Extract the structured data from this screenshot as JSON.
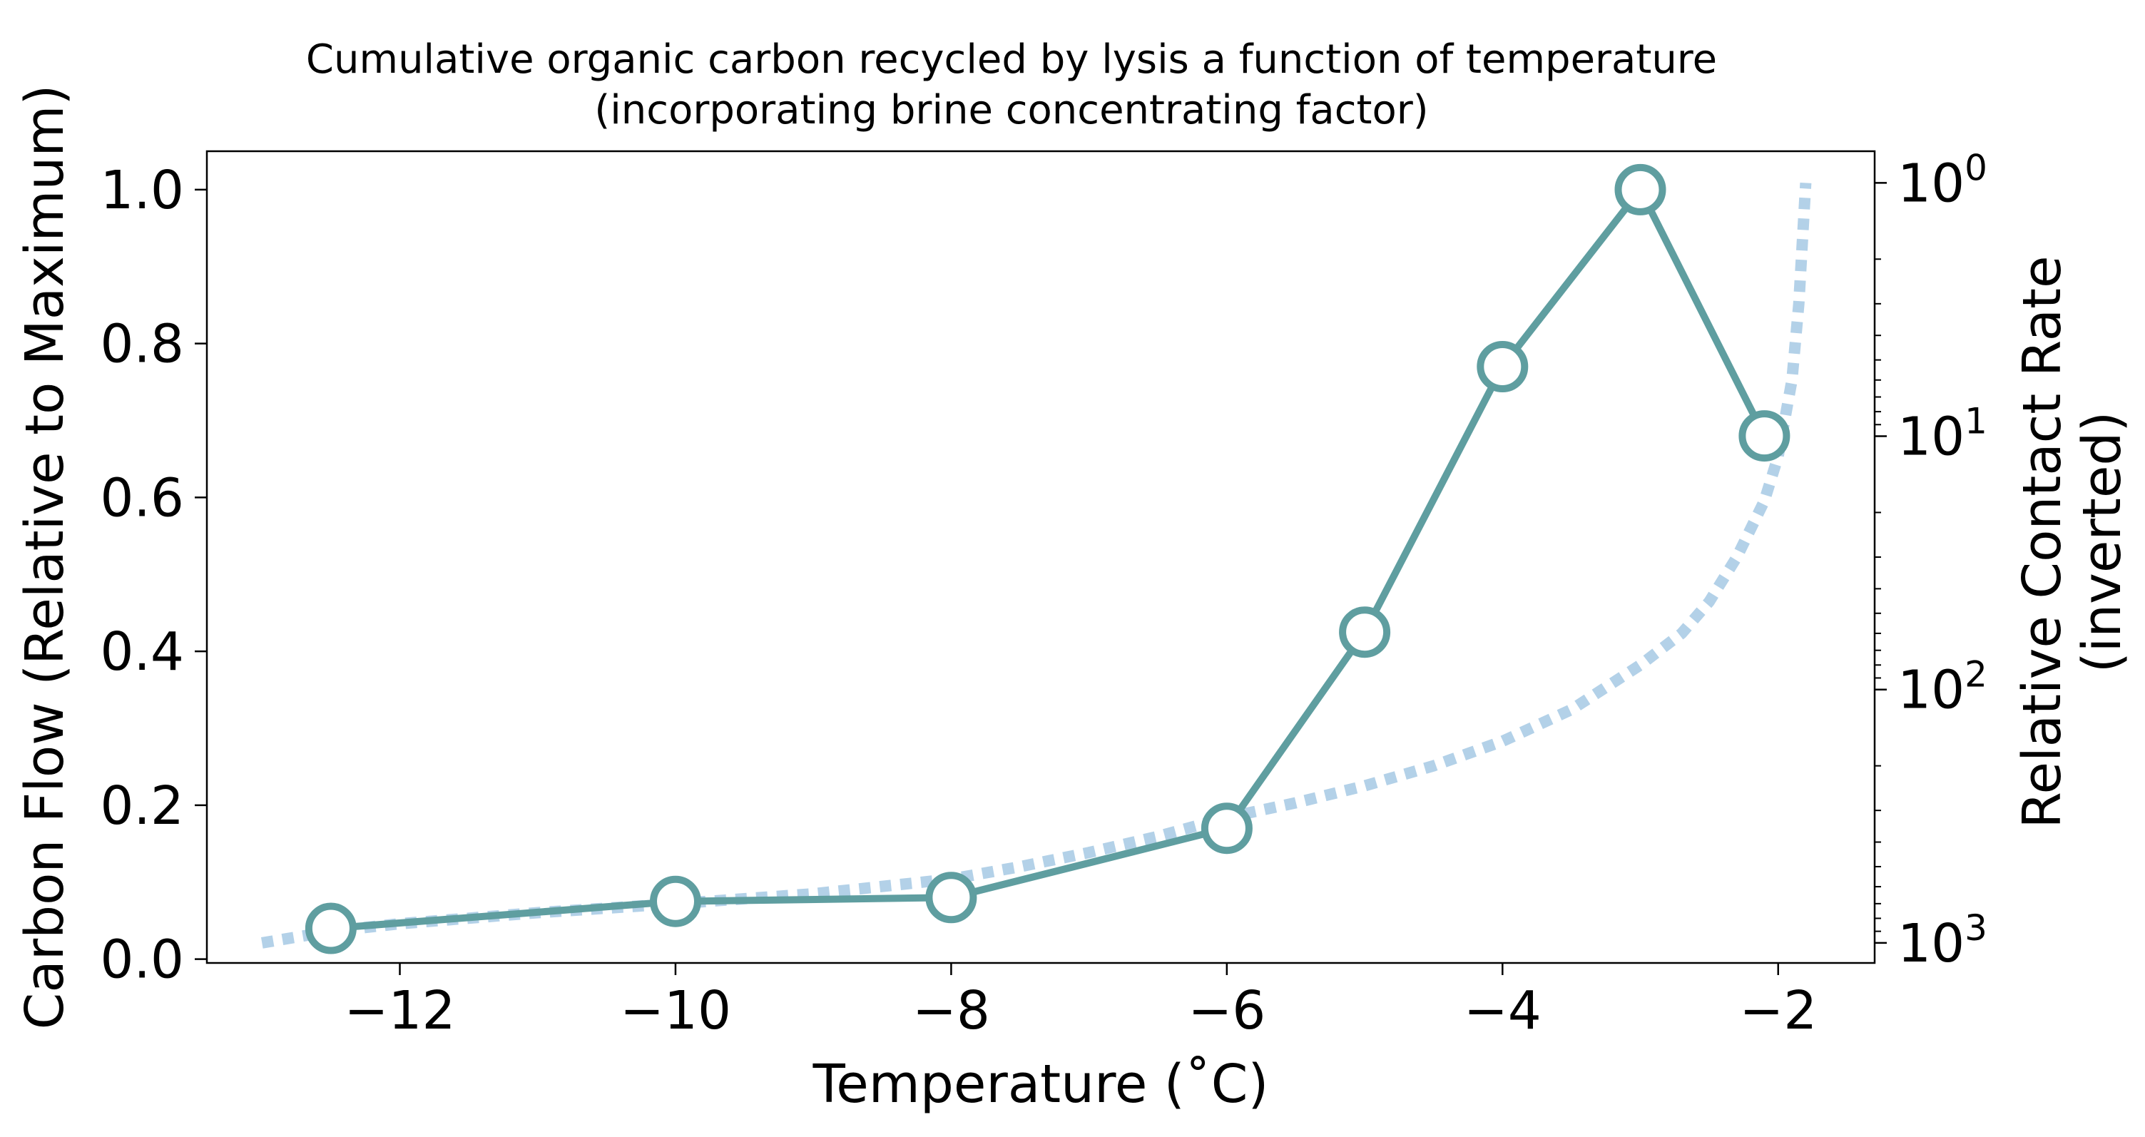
{
  "chart_data": {
    "type": "line",
    "title_line1": "Cumulative organic carbon recycled by lysis a function of temperature",
    "title_line2": "(incorporating brine concentrating factor)",
    "xlabel": "Temperature (˚C)",
    "ylabel": "Carbon Flow (Relative to Maximum)",
    "y2label_line1": "Relative Contact Rate",
    "y2label_line2": "(inverted)",
    "xlim": [
      -13.4,
      -1.3
    ],
    "ylim": [
      -0.005,
      1.05
    ],
    "y2lim": [
      1200,
      0.75
    ],
    "y2scale": "log (inverted)",
    "grid": false,
    "x_ticks": [
      -12,
      -10,
      -8,
      -6,
      -4,
      -2
    ],
    "x_tick_labels": [
      "−12",
      "−10",
      "−8",
      "−6",
      "−4",
      "−2"
    ],
    "y_ticks": [
      0.0,
      0.2,
      0.4,
      0.6,
      0.8,
      1.0
    ],
    "y_tick_labels": [
      "0.0",
      "0.2",
      "0.4",
      "0.6",
      "0.8",
      "1.0"
    ],
    "y2_ticks": [
      1,
      10,
      100,
      1000
    ],
    "y2_tick_labels": [
      {
        "base": "10",
        "exp": "0"
      },
      {
        "base": "10",
        "exp": "1"
      },
      {
        "base": "10",
        "exp": "2"
      },
      {
        "base": "10",
        "exp": "3"
      }
    ],
    "series": [
      {
        "axis": "left",
        "style": "solid line with open circle markers",
        "color": "#5f9ea0",
        "x": [
          -12.5,
          -10,
          -8,
          -6,
          -5,
          -4,
          -3,
          -2.1
        ],
        "y": [
          0.04,
          0.075,
          0.08,
          0.17,
          0.425,
          0.77,
          1.0,
          0.68
        ]
      },
      {
        "axis": "right",
        "style": "dotted line",
        "color": "#b3d1e8",
        "x": [
          -13.0,
          -12.5,
          -12.0,
          -11.0,
          -10.0,
          -9.0,
          -8.0,
          -7.5,
          -7.0,
          -6.5,
          -6.0,
          -5.5,
          -5.0,
          -4.5,
          -4.0,
          -3.5,
          -3.0,
          -2.7,
          -2.5,
          -2.3,
          -2.1,
          -2.0,
          -1.9,
          -1.85,
          -1.8
        ],
        "y": [
          1000,
          900,
          840,
          760,
          700,
          640,
          560,
          500,
          440,
          380,
          320,
          280,
          240,
          200,
          160,
          120,
          80,
          60,
          45,
          30,
          18,
          12,
          6,
          3,
          1
        ]
      }
    ],
    "colors": {
      "line": "#5f9ea0",
      "marker_face": "#ffffff",
      "dotted": "#b3d1e8",
      "axes": "#000000"
    }
  }
}
